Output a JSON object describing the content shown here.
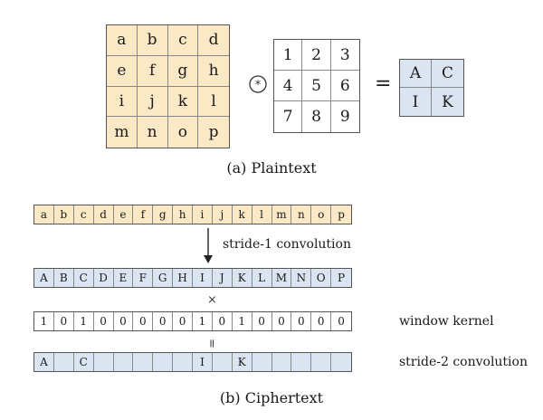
{
  "part_a": {
    "plaintext_grid": [
      "a",
      "b",
      "c",
      "d",
      "e",
      "f",
      "g",
      "h",
      "i",
      "j",
      "k",
      "l",
      "m",
      "n",
      "o",
      "p"
    ],
    "conv_symbol": "⊛",
    "kernel_grid": [
      "1",
      "2",
      "3",
      "4",
      "5",
      "6",
      "7",
      "8",
      "9"
    ],
    "equals": "=",
    "output_grid": [
      "A",
      "C",
      "I",
      "K"
    ],
    "caption": "(a) Plaintext"
  },
  "part_b": {
    "plaintext_row": [
      "a",
      "b",
      "c",
      "d",
      "e",
      "f",
      "g",
      "h",
      "i",
      "j",
      "k",
      "l",
      "m",
      "n",
      "o",
      "p"
    ],
    "arrow_label": "stride-1 convolution",
    "conv_row": [
      "A",
      "B",
      "C",
      "D",
      "E",
      "F",
      "G",
      "H",
      "I",
      "J",
      "K",
      "L",
      "M",
      "N",
      "O",
      "P"
    ],
    "times_symbol": "×",
    "kernel_row": [
      "1",
      "0",
      "1",
      "0",
      "0",
      "0",
      "0",
      "0",
      "1",
      "0",
      "1",
      "0",
      "0",
      "0",
      "0",
      "0"
    ],
    "kernel_label": "window kernel",
    "equals_symbol": "=",
    "result_row": [
      "A",
      "",
      "C",
      "",
      "",
      "",
      "",
      "",
      "I",
      "",
      "K",
      "",
      "",
      "",
      "",
      ""
    ],
    "result_label": "stride-2 convolution",
    "caption": "(b) Ciphertext"
  }
}
